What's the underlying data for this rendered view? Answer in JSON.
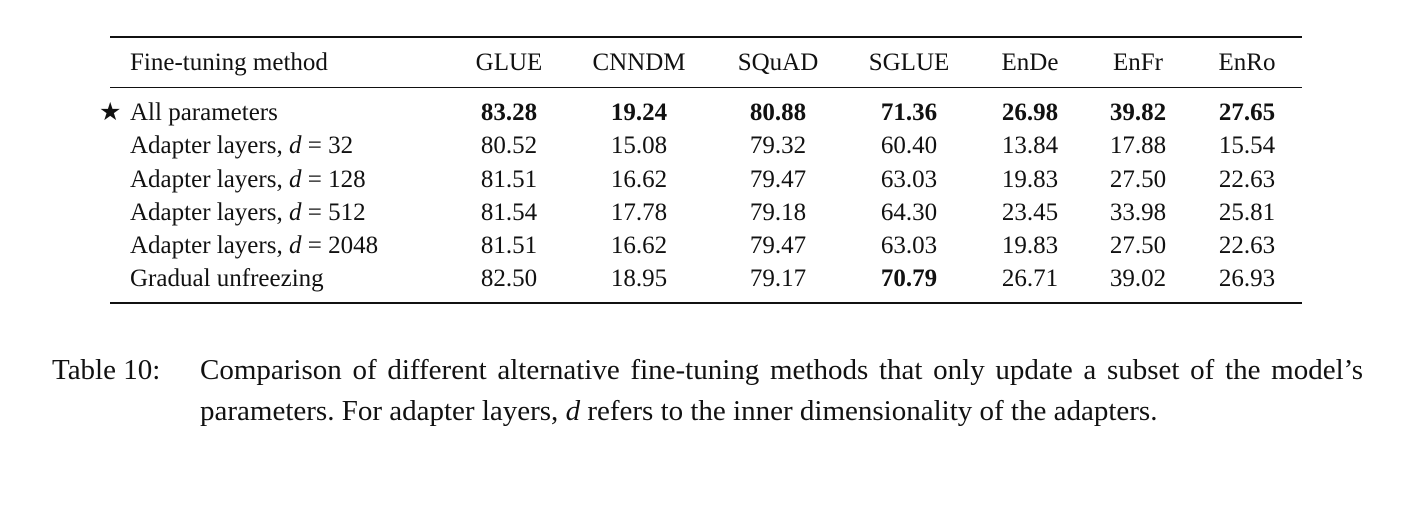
{
  "table": {
    "header": [
      "Fine-tuning method",
      "GLUE",
      "CNNDM",
      "SQuAD",
      "SGLUE",
      "EnDe",
      "EnFr",
      "EnRo"
    ],
    "rows": [
      {
        "marker": "★",
        "cells": [
          "All parameters",
          "83.28",
          "19.24",
          "80.88",
          "71.36",
          "26.98",
          "39.82",
          "27.65"
        ],
        "bold": [
          false,
          true,
          true,
          true,
          true,
          true,
          true,
          true
        ]
      },
      {
        "cells": [
          "Adapter layers, d = 32",
          "80.52",
          "15.08",
          "79.32",
          "60.40",
          "13.84",
          "17.88",
          "15.54"
        ],
        "bold": [
          false,
          false,
          false,
          false,
          false,
          false,
          false,
          false
        ]
      },
      {
        "cells": [
          "Adapter layers, d = 128",
          "81.51",
          "16.62",
          "79.47",
          "63.03",
          "19.83",
          "27.50",
          "22.63"
        ],
        "bold": [
          false,
          false,
          false,
          false,
          false,
          false,
          false,
          false
        ]
      },
      {
        "cells": [
          "Adapter layers, d = 512",
          "81.54",
          "17.78",
          "79.18",
          "64.30",
          "23.45",
          "33.98",
          "25.81"
        ],
        "bold": [
          false,
          false,
          false,
          false,
          false,
          false,
          false,
          false
        ]
      },
      {
        "cells": [
          "Adapter layers, d = 2048",
          "81.51",
          "16.62",
          "79.47",
          "63.03",
          "19.83",
          "27.50",
          "22.63"
        ],
        "bold": [
          false,
          false,
          false,
          false,
          false,
          false,
          false,
          false
        ]
      },
      {
        "cells": [
          "Gradual unfreezing",
          "82.50",
          "18.95",
          "79.17",
          "70.79",
          "26.71",
          "39.02",
          "26.93"
        ],
        "bold": [
          false,
          false,
          false,
          false,
          true,
          false,
          false,
          false
        ]
      }
    ]
  },
  "caption": {
    "label": "Table 10:",
    "text": "Comparison of different alternative fine-tuning methods that only update a subset of the model’s parameters. For adapter layers, d refers to the inner dimensionality of the adapters."
  }
}
